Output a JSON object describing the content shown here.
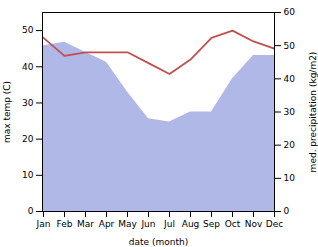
{
  "chart_data": {
    "type": "line",
    "categories": [
      "Jan",
      "Feb",
      "Mar",
      "Apr",
      "May",
      "Jun",
      "Jul",
      "Aug",
      "Sep",
      "Oct",
      "Nov",
      "Dec"
    ],
    "xlabel": "date (month)",
    "ylabel": "max temp (C)",
    "y2label": "med. precipitation (kg/m2)",
    "ylim": [
      0,
      55
    ],
    "yticks": [
      0,
      10,
      20,
      30,
      40,
      50
    ],
    "y2lim": [
      0,
      60
    ],
    "y2ticks": [
      0,
      10,
      20,
      30,
      40,
      50,
      60
    ],
    "series": [
      {
        "type": "area",
        "axis": "y2",
        "color": "#b0b8e8",
        "values": [
          50,
          51,
          48,
          45,
          36,
          28,
          27,
          30,
          30,
          40,
          47,
          47
        ]
      },
      {
        "type": "line",
        "color": "#c0504d",
        "values": [
          48,
          43,
          44,
          44,
          44,
          41,
          38,
          42,
          48,
          50,
          47,
          45
        ]
      }
    ]
  }
}
